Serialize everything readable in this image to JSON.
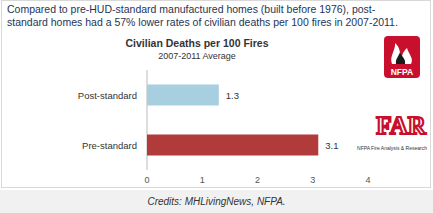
{
  "header": {
    "text": "Compared to pre-HUD-standard manufactured homes (built before 1976), post-standard homes had a 57% lower rates of civilian deaths per 100 fires in 2007-2011."
  },
  "chart_data": {
    "type": "bar",
    "orientation": "horizontal",
    "title": "Civilian Deaths per 100 Fires",
    "subtitle": "2007-2011 Average",
    "categories": [
      "Post-standard",
      "Pre-standard"
    ],
    "values": [
      1.3,
      3.1
    ],
    "colors": [
      "#a8cfe0",
      "#b13b3b"
    ],
    "xlim": [
      0,
      4
    ],
    "xticks": [
      0,
      1,
      2,
      3,
      4
    ],
    "grid": false,
    "data_labels": true
  },
  "logos": {
    "nfpa": "NFPA",
    "far": "FAR",
    "far_caption": "NFPA Fire Analysis & Research"
  },
  "caption": "Credits: MHLivingNews, NFPA."
}
